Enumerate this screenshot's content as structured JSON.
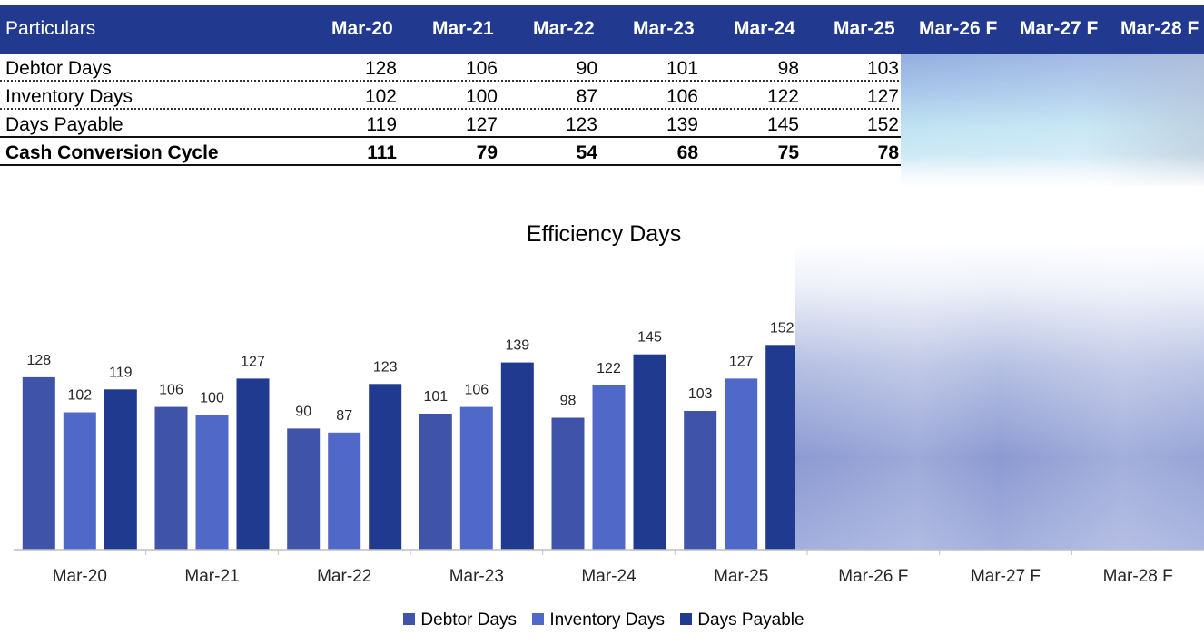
{
  "table": {
    "header": {
      "label": "Particulars",
      "periods": [
        "Mar-20",
        "Mar-21",
        "Mar-22",
        "Mar-23",
        "Mar-24",
        "Mar-25",
        "Mar-26 F",
        "Mar-27 F",
        "Mar-28 F"
      ]
    },
    "rows": [
      {
        "label": "Debtor Days",
        "values": [
          "128",
          "106",
          "90",
          "101",
          "98",
          "103"
        ]
      },
      {
        "label": "Inventory Days",
        "values": [
          "102",
          "100",
          "87",
          "106",
          "122",
          "127"
        ]
      },
      {
        "label": "Days Payable",
        "values": [
          "119",
          "127",
          "123",
          "139",
          "145",
          "152"
        ]
      },
      {
        "label": "Cash Conversion Cycle",
        "values": [
          "111",
          "79",
          "54",
          "68",
          "75",
          "78"
        ]
      }
    ]
  },
  "chart_data": {
    "type": "bar",
    "title": "Efficiency Days",
    "categories": [
      "Mar-20",
      "Mar-21",
      "Mar-22",
      "Mar-23",
      "Mar-24",
      "Mar-25",
      "Mar-26 F",
      "Mar-27 F",
      "Mar-28 F"
    ],
    "series": [
      {
        "name": "Debtor Days",
        "color": "#3f54a8",
        "values": [
          128,
          106,
          90,
          101,
          98,
          103,
          null,
          null,
          null
        ]
      },
      {
        "name": "Inventory Days",
        "color": "#5068c8",
        "values": [
          102,
          100,
          87,
          106,
          122,
          127,
          null,
          null,
          null
        ]
      },
      {
        "name": "Days Payable",
        "color": "#203a8f",
        "values": [
          119,
          127,
          123,
          139,
          145,
          152,
          null,
          null,
          null
        ]
      }
    ],
    "ylim": [
      0,
      152
    ],
    "grid": false,
    "legend": "bottom",
    "obscured_categories": [
      "Mar-26 F",
      "Mar-27 F",
      "Mar-28 F"
    ]
  }
}
